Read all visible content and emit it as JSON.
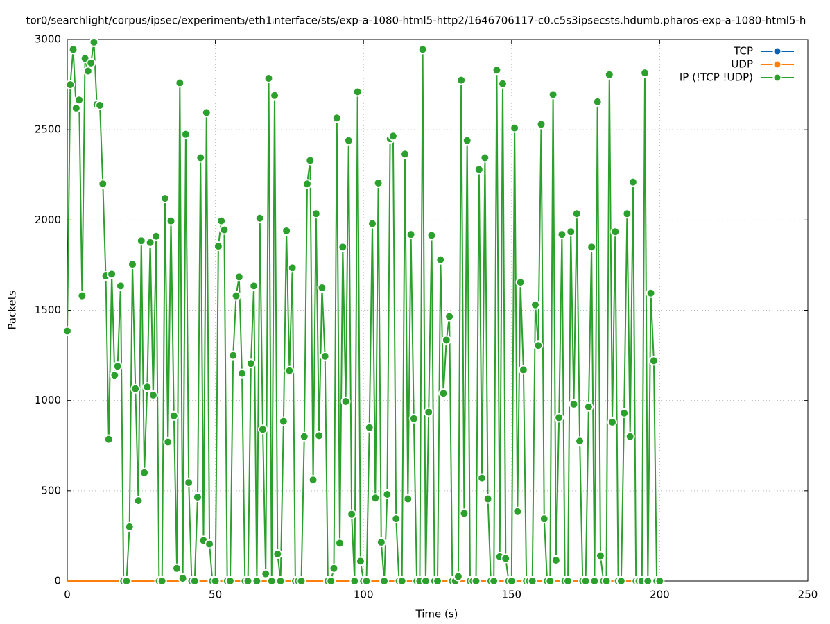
{
  "chart_data": {
    "type": "line",
    "title": "tor0/searchlight/corpus/ipsec/experiment₃/eth1ᵢnterface/sts/exp-a-1080-html5-http2/1646706117-c0.c5s3ipsecsts.hdumb.pharos-exp-a-1080-html5-h",
    "x_label": "Time (s)",
    "y_label": "Packets",
    "xlim": [
      0,
      250
    ],
    "xticks": [
      0,
      50,
      100,
      150,
      200,
      250
    ],
    "ylim": [
      0,
      3000
    ],
    "yticks": [
      0,
      500,
      1000,
      1500,
      2000,
      2500,
      3000
    ],
    "grid": true,
    "legend": "top-right",
    "x": [
      0,
      1,
      2,
      3,
      4,
      5,
      6,
      7,
      8,
      9,
      10,
      11,
      12,
      13,
      14,
      15,
      16,
      17,
      18,
      19,
      20,
      21,
      22,
      23,
      24,
      25,
      26,
      27,
      28,
      29,
      30,
      31,
      32,
      33,
      34,
      35,
      36,
      37,
      38,
      39,
      40,
      41,
      42,
      43,
      44,
      45,
      46,
      47,
      48,
      49,
      50,
      51,
      52,
      53,
      54,
      55,
      56,
      57,
      58,
      59,
      60,
      61,
      62,
      63,
      64,
      65,
      66,
      67,
      68,
      69,
      70,
      71,
      72,
      73,
      74,
      75,
      76,
      77,
      78,
      79,
      80,
      81,
      82,
      83,
      84,
      85,
      86,
      87,
      88,
      89,
      90,
      91,
      92,
      93,
      94,
      95,
      96,
      97,
      98,
      99,
      100,
      101,
      102,
      103,
      104,
      105,
      106,
      107,
      108,
      109,
      110,
      111,
      112,
      113,
      114,
      115,
      116,
      117,
      118,
      119,
      120,
      121,
      122,
      123,
      124,
      125,
      126,
      127,
      128,
      129,
      130,
      131,
      132,
      133,
      134,
      135,
      136,
      137,
      138,
      139,
      140,
      141,
      142,
      143,
      144,
      145,
      146,
      147,
      148,
      149,
      150,
      151,
      152,
      153,
      154,
      155,
      156,
      157,
      158,
      159,
      160,
      161,
      162,
      163,
      164,
      165,
      166,
      167,
      168,
      169,
      170,
      171,
      172,
      173,
      174,
      175,
      176,
      177,
      178,
      179,
      180,
      181,
      182,
      183,
      184,
      185,
      186,
      187,
      188,
      189,
      190,
      191,
      192,
      193,
      194,
      195,
      196,
      197,
      198,
      199,
      200
    ],
    "series": [
      {
        "name": "TCP",
        "color": "#0b62b0",
        "markers": false,
        "values": [
          0,
          0,
          0,
          0,
          0,
          0,
          0,
          0,
          0,
          0,
          0,
          0,
          0,
          0,
          0,
          0,
          0,
          0,
          0,
          0,
          0,
          0,
          0,
          0,
          0,
          0,
          0,
          0,
          0,
          0,
          0,
          0,
          0,
          0,
          0,
          0,
          0,
          0,
          0,
          0,
          0,
          0,
          0,
          0,
          0,
          0,
          0,
          0,
          0,
          0,
          0,
          0,
          0,
          0,
          0,
          0,
          0,
          0,
          0,
          0,
          0,
          0,
          0,
          0,
          0,
          0,
          0,
          0,
          0,
          0,
          0,
          0,
          0,
          0,
          0,
          0,
          0,
          0,
          0,
          0,
          0,
          0,
          0,
          0,
          0,
          0,
          0,
          0,
          0,
          0,
          0,
          0,
          0,
          0,
          0,
          0,
          0,
          0,
          0,
          0,
          0,
          0,
          0,
          0,
          0,
          0,
          0,
          0,
          0,
          0,
          0,
          0,
          0,
          0,
          0,
          0,
          0,
          0,
          0,
          0,
          0,
          0,
          0,
          0,
          0,
          0,
          0,
          0,
          0,
          0,
          0,
          0,
          0,
          0,
          0,
          0,
          0,
          0,
          0,
          0,
          0,
          0,
          0,
          0,
          0,
          0,
          0,
          0,
          0,
          0,
          0,
          0,
          0,
          0,
          0,
          0,
          0,
          0,
          0,
          0,
          0,
          0,
          0,
          0,
          0,
          0,
          0,
          0,
          0,
          0,
          0,
          0,
          0,
          0,
          0,
          0,
          0,
          0,
          0,
          0,
          0,
          0,
          0,
          0,
          0,
          0,
          0,
          0,
          0,
          0,
          0,
          0,
          0,
          0,
          0,
          0,
          0,
          0,
          0,
          0,
          0
        ]
      },
      {
        "name": "UDP",
        "color": "#ff7f0e",
        "markers": false,
        "values": [
          0,
          0,
          0,
          0,
          0,
          0,
          0,
          0,
          0,
          0,
          0,
          0,
          0,
          0,
          0,
          0,
          0,
          0,
          0,
          0,
          0,
          0,
          0,
          0,
          0,
          0,
          0,
          0,
          0,
          0,
          0,
          0,
          0,
          0,
          0,
          0,
          0,
          0,
          0,
          0,
          0,
          0,
          0,
          0,
          0,
          0,
          0,
          0,
          0,
          0,
          0,
          0,
          0,
          0,
          0,
          0,
          0,
          0,
          0,
          0,
          0,
          0,
          0,
          0,
          0,
          0,
          0,
          0,
          0,
          0,
          0,
          0,
          0,
          0,
          0,
          0,
          0,
          0,
          0,
          0,
          0,
          0,
          0,
          0,
          0,
          0,
          0,
          0,
          0,
          0,
          0,
          0,
          0,
          0,
          0,
          0,
          0,
          0,
          0,
          0,
          0,
          0,
          0,
          0,
          0,
          0,
          0,
          0,
          0,
          0,
          0,
          0,
          0,
          0,
          0,
          0,
          0,
          0,
          0,
          0,
          0,
          0,
          0,
          0,
          0,
          0,
          0,
          0,
          0,
          0,
          0,
          0,
          0,
          0,
          0,
          0,
          0,
          0,
          0,
          0,
          0,
          0,
          0,
          0,
          0,
          0,
          0,
          0,
          0,
          0,
          0,
          0,
          0,
          0,
          0,
          0,
          0,
          0,
          0,
          0,
          0,
          0,
          0,
          0,
          0,
          0,
          0,
          0,
          0,
          0,
          0,
          0,
          0,
          0,
          0,
          0,
          0,
          0,
          0,
          0,
          0,
          0,
          0,
          0,
          0,
          0,
          0,
          0,
          0,
          0,
          0,
          0,
          0,
          0,
          0,
          0,
          0,
          0,
          0,
          0,
          0
        ]
      },
      {
        "name": "IP (!TCP  !UDP)",
        "color": "#2ca02c",
        "markers": true,
        "values": [
          1385,
          2750,
          2945,
          2620,
          2665,
          1580,
          2895,
          2825,
          2870,
          2985,
          2640,
          2635,
          2200,
          1690,
          785,
          1700,
          1140,
          1190,
          1635,
          0,
          0,
          300,
          1755,
          1065,
          445,
          1885,
          600,
          1075,
          1875,
          1030,
          1910,
          0,
          0,
          2120,
          770,
          1995,
          915,
          70,
          2760,
          15,
          2475,
          545,
          0,
          0,
          465,
          2345,
          225,
          2595,
          205,
          0,
          0,
          1855,
          1995,
          1945,
          0,
          0,
          1250,
          1580,
          1685,
          1150,
          0,
          0,
          1205,
          1635,
          0,
          2010,
          840,
          40,
          2785,
          0,
          2690,
          150,
          0,
          885,
          1940,
          1165,
          1735,
          0,
          0,
          0,
          800,
          2200,
          2330,
          560,
          2035,
          805,
          1625,
          1245,
          0,
          0,
          70,
          2565,
          210,
          1850,
          995,
          2440,
          370,
          0,
          2710,
          110,
          0,
          0,
          850,
          1980,
          460,
          2205,
          215,
          0,
          480,
          2450,
          2465,
          345,
          0,
          0,
          2365,
          455,
          1920,
          900,
          0,
          0,
          2945,
          0,
          935,
          1915,
          0,
          0,
          1780,
          1040,
          1335,
          1465,
          0,
          0,
          25,
          2775,
          375,
          2440,
          0,
          0,
          0,
          2280,
          570,
          2345,
          455,
          0,
          0,
          2830,
          135,
          2755,
          125,
          0,
          0,
          2510,
          385,
          1655,
          1170,
          0,
          0,
          0,
          1530,
          1305,
          2530,
          345,
          0,
          0,
          2695,
          115,
          905,
          1920,
          0,
          0,
          1935,
          980,
          2035,
          775,
          0,
          0,
          965,
          1850,
          0,
          2655,
          140,
          0,
          0,
          2805,
          880,
          1935,
          0,
          0,
          930,
          2035,
          800,
          2210,
          0,
          0,
          0,
          2815,
          0,
          1595,
          1220,
          0,
          0
        ]
      }
    ]
  }
}
